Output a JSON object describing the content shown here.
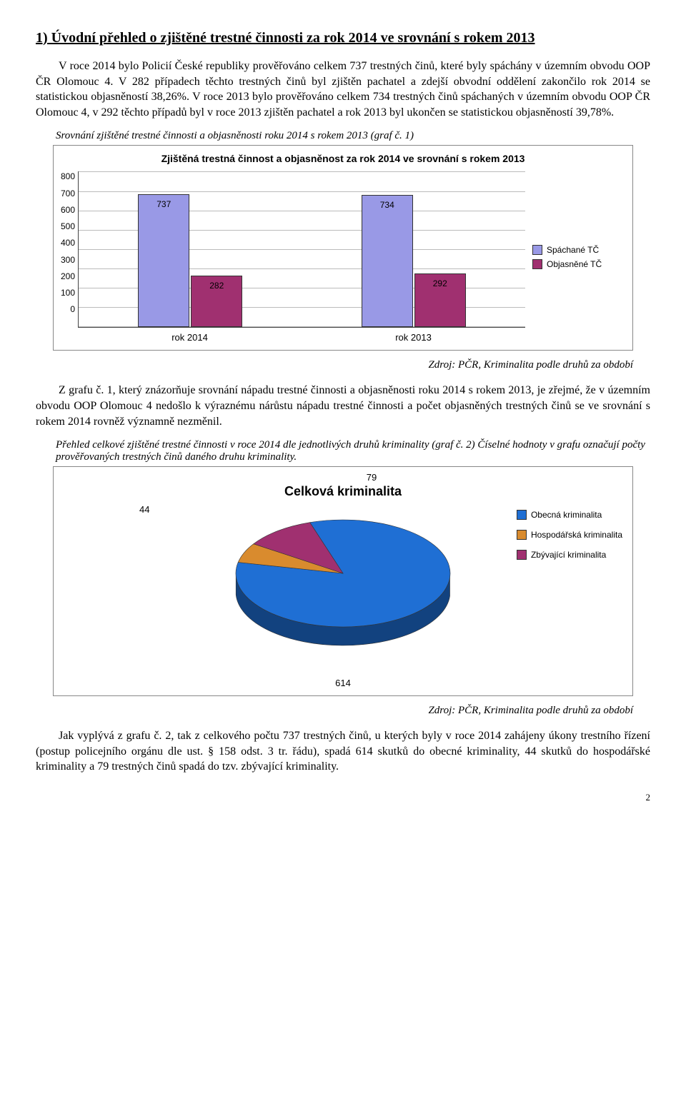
{
  "heading": "1) Úvodní přehled o zjištěné trestné činnosti za rok 2014 ve srovnání s rokem 2013",
  "p1": "V roce 2014 bylo Policií České republiky prověřováno celkem 737 trestných činů, které byly spáchány v územním obvodu OOP ČR Olomouc 4. V 282 případech těchto trestných činů byl zjištěn pachatel a zdejší obvodní oddělení zakončilo rok 2014 se statistickou objasněností 38,26%. V roce 2013 bylo prověřováno celkem 734 trestných činů spáchaných v územním obvodu OOP ČR Olomouc 4, v 292 těchto případů byl v roce 2013 zjištěn pachatel a rok 2013 byl ukončen se statistickou objasněností 39,78%.",
  "cap1": "Srovnání zjištěné trestné činnosti a objasněnosti roku 2014 s rokem 2013 (graf č. 1)",
  "chart1": {
    "title": "Zjištěná trestná činnost a objasněnost za rok 2014 ve srovnání s rokem 2013",
    "ymax": 800,
    "ystep": 100,
    "yticks": [
      "800",
      "700",
      "600",
      "500",
      "400",
      "300",
      "200",
      "100",
      "0"
    ],
    "categories": [
      "rok 2014",
      "rok 2013"
    ],
    "series": [
      {
        "label": "Spáchané TČ",
        "color": "#9999e6",
        "values": [
          737,
          734
        ]
      },
      {
        "label": "Objasněné TČ",
        "color": "#a03070",
        "values": [
          282,
          292
        ]
      }
    ]
  },
  "source": "Zdroj: PČR, Kriminalita podle druhů za období",
  "p2": "Z grafu č. 1, který znázorňuje srovnání nápadu trestné činnosti a objasněnosti roku 2014 s rokem 2013, je zřejmé, že v územním obvodu OOP Olomouc 4 nedošlo k výraznému nárůstu nápadu trestné činnosti a počet objasněných trestných činů se ve srovnání s rokem 2014 rovněž významně nezměnil.",
  "cap2": "Přehled celkové zjištěné trestné činnosti v roce 2014 dle jednotlivých druhů kriminality (graf č. 2) Číselné hodnoty v grafu označují počty prověřovaných trestných činů daného druhu kriminality.",
  "pie": {
    "title": "Celková kriminalita",
    "slices": [
      {
        "label": "Obecná kriminalita",
        "value": 614,
        "color": "#1f6fd4"
      },
      {
        "label": "Hospodářská kriminalita",
        "value": 44,
        "color": "#d98b2e"
      },
      {
        "label": "Zbývající kriminalita",
        "value": 79,
        "color": "#a03070"
      }
    ]
  },
  "p3": "Jak vyplývá z grafu č. 2, tak z celkového počtu 737 trestných činů, u kterých byly v roce 2014 zahájeny úkony trestního řízení (postup policejního orgánu dle ust. § 158 odst. 3 tr. řádu), spadá 614 skutků do obecné kriminality, 44 skutků do hospodářské kriminality a 79 trestných činů spadá do tzv. zbývající kriminality.",
  "pagenum": "2"
}
